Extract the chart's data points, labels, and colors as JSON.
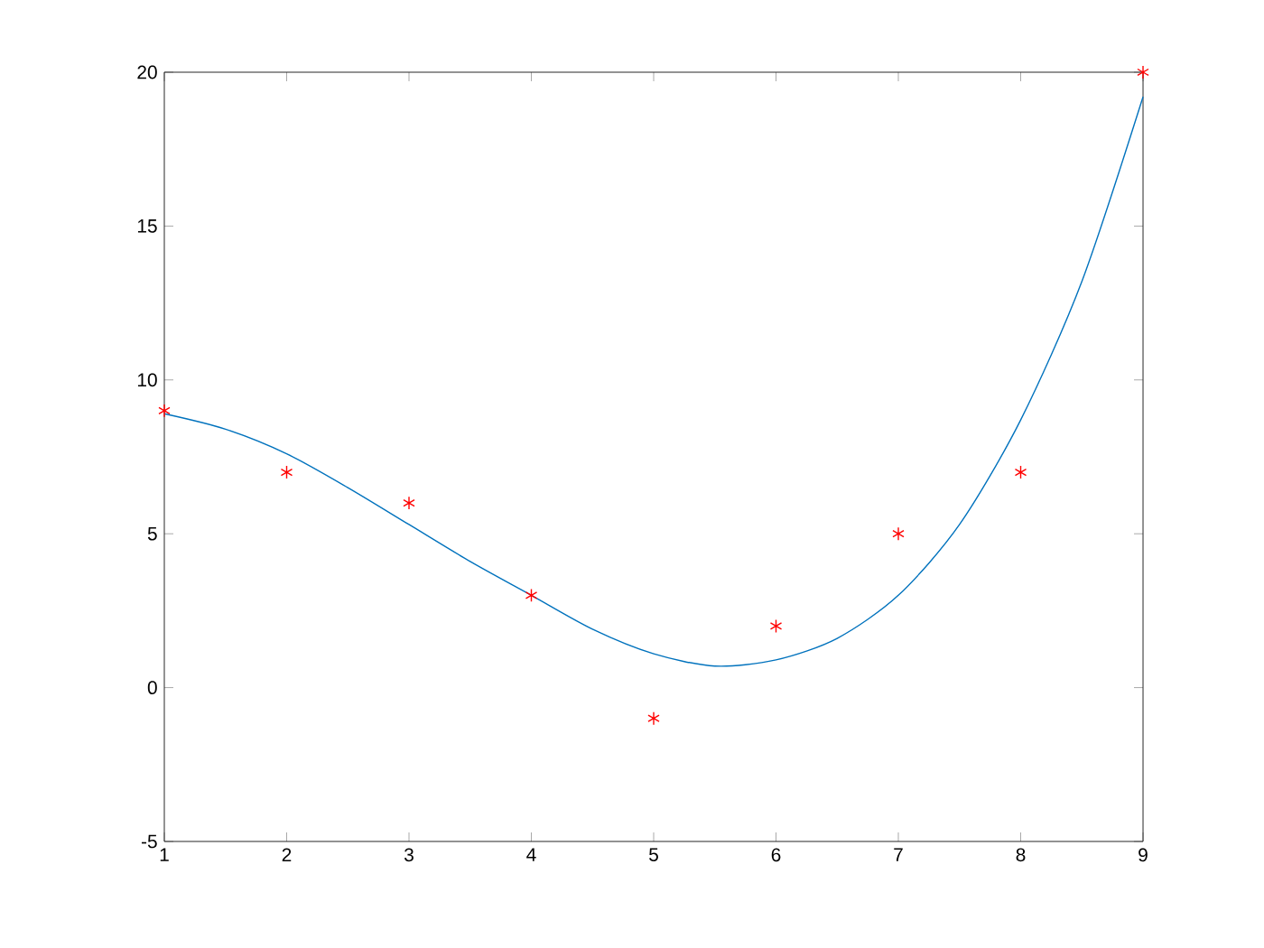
{
  "chart_data": {
    "type": "line",
    "series": [
      {
        "type": "scatter",
        "color": "#ff0000",
        "marker": "cross",
        "x": [
          1,
          2,
          3,
          4,
          5,
          6,
          7,
          8,
          9
        ],
        "values": [
          9,
          7,
          6,
          3,
          -1,
          2,
          5,
          7,
          20
        ]
      },
      {
        "color": "#0072bd",
        "x": [
          1,
          1.5,
          2,
          2.5,
          3,
          3.5,
          4,
          4.5,
          5,
          5.5,
          6,
          6.5,
          7,
          7.5,
          8,
          8.5,
          9
        ],
        "values": [
          8.9,
          8.4,
          7.6,
          6.5,
          5.3,
          4.1,
          3.0,
          1.9,
          1.1,
          0.7,
          0.9,
          1.6,
          3.0,
          5.3,
          8.7,
          13.2,
          19.2
        ]
      }
    ],
    "xlim": [
      1,
      9
    ],
    "ylim": [
      -5,
      20
    ],
    "xticks": [
      1,
      2,
      3,
      4,
      5,
      6,
      7,
      8,
      9
    ],
    "yticks": [
      -5,
      0,
      5,
      10,
      15,
      20
    ],
    "grid": false
  }
}
